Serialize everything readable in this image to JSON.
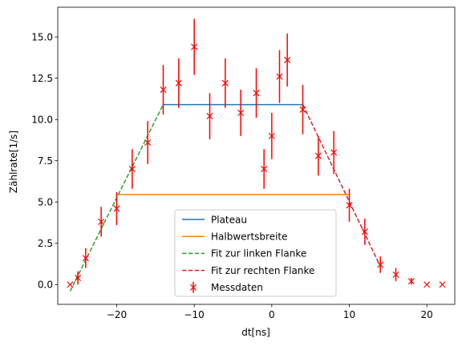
{
  "chart_data": {
    "type": "scatter",
    "xlabel": "dt[ns]",
    "ylabel": "Zählrate[1/s]",
    "xlim": [
      -27.6,
      23.6
    ],
    "ylim": [
      -1.2,
      16.8
    ],
    "xticks": [
      -20,
      -10,
      0,
      10,
      20
    ],
    "yticks": [
      0.0,
      2.5,
      5.0,
      7.5,
      10.0,
      12.5,
      15.0
    ],
    "ytick_labels": [
      "0.0",
      "2.5",
      "5.0",
      "7.5",
      "10.0",
      "12.5",
      "15.0"
    ],
    "grid": false,
    "legend_position": "lower-center",
    "series": [
      {
        "name": "Plateau",
        "kind": "line",
        "style": "solid",
        "color": "#1f77b4",
        "x": [
          -14,
          4
        ],
        "y": [
          10.9,
          10.9
        ]
      },
      {
        "name": "Halbwertsbreite",
        "kind": "line",
        "style": "solid",
        "color": "#ff7f0e",
        "x": [
          -20,
          9.9
        ],
        "y": [
          5.45,
          5.45
        ]
      },
      {
        "name": "Fit zur linken Flanke",
        "kind": "line",
        "style": "dashed",
        "color": "#2ca02c",
        "x": [
          -26,
          -14
        ],
        "y": [
          -0.4,
          10.9
        ]
      },
      {
        "name": "Fit zur rechten Flanke",
        "kind": "line",
        "style": "dashed",
        "color": "#d62728",
        "x": [
          4,
          14
        ],
        "y": [
          10.9,
          1.1
        ]
      },
      {
        "name": "Messdaten",
        "kind": "errorbar",
        "color": "#ff0000",
        "marker": "x",
        "x": [
          -26,
          -25,
          -24,
          -22,
          -20,
          -18,
          -16,
          -14,
          -12,
          -10,
          -8,
          -6,
          -4,
          -2,
          -1,
          0,
          1,
          2,
          4,
          6,
          8,
          10,
          12,
          14,
          16,
          18,
          20,
          22
        ],
        "y": [
          0.0,
          0.4,
          1.6,
          3.8,
          4.6,
          7.0,
          8.6,
          11.8,
          12.2,
          14.4,
          10.2,
          12.2,
          10.4,
          11.6,
          7.0,
          9.0,
          12.6,
          13.6,
          10.6,
          7.8,
          8.0,
          4.8,
          3.2,
          1.2,
          0.6,
          0.2,
          0.0,
          0.0
        ],
        "err": [
          0.0,
          0.4,
          0.6,
          0.9,
          1.0,
          1.2,
          1.3,
          1.5,
          1.5,
          1.7,
          1.4,
          1.5,
          1.4,
          1.5,
          1.2,
          1.4,
          1.6,
          1.6,
          1.5,
          1.2,
          1.3,
          1.0,
          0.8,
          0.5,
          0.4,
          0.2,
          0.0,
          0.0
        ]
      }
    ]
  }
}
